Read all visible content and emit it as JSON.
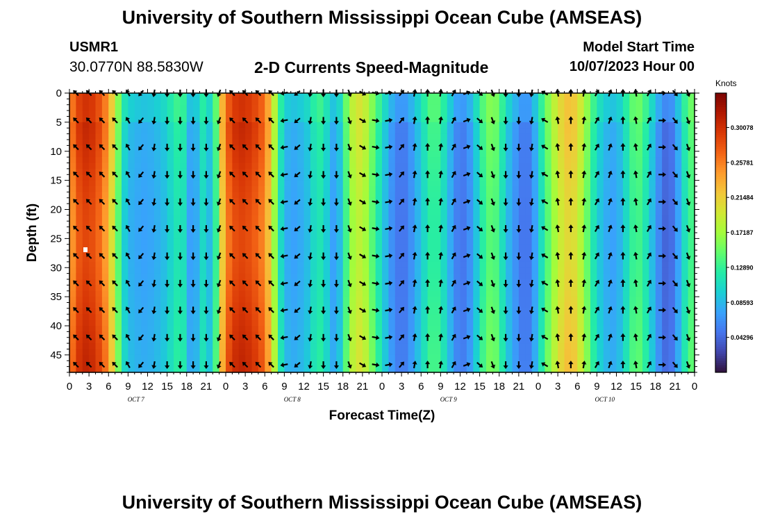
{
  "header": {
    "title": "University of Southern Mississippi Ocean Cube (AMSEAS)",
    "station_id": "USMR1",
    "station_coords": "30.0770N  88.5830W",
    "subtitle": "2-D Currents Speed-Magnitude",
    "start_label": "Model Start Time",
    "start_value": "10/07/2023 Hour 00"
  },
  "footer": {
    "title": "University of Southern Mississippi Ocean Cube (AMSEAS)"
  },
  "chart_data": {
    "type": "heatmap",
    "title": "2-D Currents Speed-Magnitude",
    "xlabel": "Forecast Time(Z)",
    "ylabel": "Depth (ft)",
    "x_range_hours": [
      0,
      96
    ],
    "x_ticks": [
      "0",
      "3",
      "6",
      "9",
      "12",
      "15",
      "18",
      "21",
      "0",
      "3",
      "6",
      "9",
      "12",
      "15",
      "18",
      "21",
      "0",
      "3",
      "6",
      "9",
      "12",
      "15",
      "18",
      "21",
      "0",
      "3",
      "6",
      "9",
      "12",
      "15",
      "18",
      "21",
      "0"
    ],
    "x_date_labels": [
      {
        "label": "OCT 7",
        "hour": 10
      },
      {
        "label": "OCT 8",
        "hour": 34
      },
      {
        "label": "OCT 9",
        "hour": 58
      },
      {
        "label": "OCT 10",
        "hour": 82
      }
    ],
    "y_range_ft": [
      0,
      48
    ],
    "y_ticks": [
      "0",
      "5",
      "10",
      "15",
      "20",
      "25",
      "30",
      "35",
      "40",
      "45"
    ],
    "colorbar": {
      "unit": "Knots",
      "min": 0.0,
      "max": 0.343,
      "labels": [
        "0.30078",
        "0.25781",
        "0.21484",
        "0.17187",
        "0.12890",
        "0.08593",
        "0.04296"
      ],
      "label_values": [
        0.30078,
        0.25781,
        0.21484,
        0.17187,
        0.1289,
        0.08593,
        0.04296
      ],
      "colors": [
        "#30123b",
        "#4145ab",
        "#4675ed",
        "#39a2fc",
        "#1bcfd4",
        "#24eca6",
        "#61fc6c",
        "#a4fc3b",
        "#d1e834",
        "#f3c63a",
        "#fe9b2d",
        "#f36315",
        "#d93806",
        "#b11901",
        "#7a0402"
      ]
    },
    "speed_profile_hours": [
      0,
      1,
      2,
      3,
      4,
      5,
      6,
      7,
      8,
      9,
      10,
      11,
      12,
      13,
      14,
      15,
      16,
      17,
      18,
      19,
      20,
      21,
      22,
      23,
      24,
      25,
      26,
      27,
      28,
      29,
      30,
      31,
      32,
      33,
      34,
      35,
      36,
      37,
      38,
      39,
      40,
      41,
      42,
      43,
      44,
      45,
      46,
      47,
      48,
      49,
      50,
      51,
      52,
      53,
      54,
      55,
      56,
      57,
      58,
      59,
      60,
      61,
      62,
      63,
      64,
      65,
      66,
      67,
      68,
      69,
      70,
      71,
      72,
      73,
      74,
      75,
      76,
      77,
      78,
      79,
      80,
      81,
      82,
      83,
      84,
      85,
      86,
      87,
      88,
      89,
      90,
      91,
      92,
      93,
      94,
      95,
      96
    ],
    "speed_profile_knots": [
      0.25,
      0.29,
      0.31,
      0.31,
      0.3,
      0.28,
      0.25,
      0.19,
      0.12,
      0.09,
      0.085,
      0.08,
      0.08,
      0.085,
      0.09,
      0.1,
      0.12,
      0.13,
      0.11,
      0.05,
      0.12,
      0.11,
      0.08,
      0.2,
      0.27,
      0.3,
      0.31,
      0.31,
      0.3,
      0.29,
      0.27,
      0.22,
      0.14,
      0.09,
      0.08,
      0.08,
      0.09,
      0.1,
      0.13,
      0.12,
      0.09,
      0.07,
      0.12,
      0.17,
      0.2,
      0.2,
      0.17,
      0.14,
      0.11,
      0.08,
      0.06,
      0.05,
      0.06,
      0.08,
      0.1,
      0.13,
      0.14,
      0.13,
      0.1,
      0.07,
      0.05,
      0.06,
      0.08,
      0.12,
      0.15,
      0.16,
      0.14,
      0.1,
      0.08,
      0.06,
      0.05,
      0.06,
      0.1,
      0.14,
      0.17,
      0.2,
      0.22,
      0.23,
      0.21,
      0.18,
      0.14,
      0.11,
      0.09,
      0.08,
      0.08,
      0.1,
      0.13,
      0.15,
      0.14,
      0.11,
      0.08,
      0.05,
      0.04,
      0.06,
      0.1,
      0.14,
      0.15
    ],
    "arrow_direction_deg": [
      315,
      315,
      315,
      315,
      315,
      315,
      315,
      315,
      315,
      330,
      240,
      220,
      220,
      190,
      180,
      180,
      180,
      180,
      180,
      180,
      180,
      180,
      180,
      200,
      315,
      315,
      315,
      315,
      315,
      315,
      315,
      315,
      290,
      260,
      240,
      230,
      210,
      190,
      180,
      180,
      180,
      180,
      180,
      160,
      135,
      120,
      110,
      100,
      90,
      80,
      60,
      40,
      20,
      10,
      0,
      0,
      0,
      10,
      20,
      30,
      45,
      70,
      100,
      130,
      150,
      160,
      170,
      180,
      180,
      180,
      180,
      190,
      220,
      300,
      345,
      350,
      355,
      0,
      0,
      10,
      20,
      30,
      30,
      20,
      10,
      0,
      350,
      350,
      10,
      30,
      60,
      90,
      120,
      140,
      150,
      160,
      160
    ],
    "arrow_depths_ft": [
      0,
      4.7,
      9.3,
      14,
      18.7,
      23.3,
      28,
      32.7,
      37.3,
      42,
      46.7
    ]
  }
}
